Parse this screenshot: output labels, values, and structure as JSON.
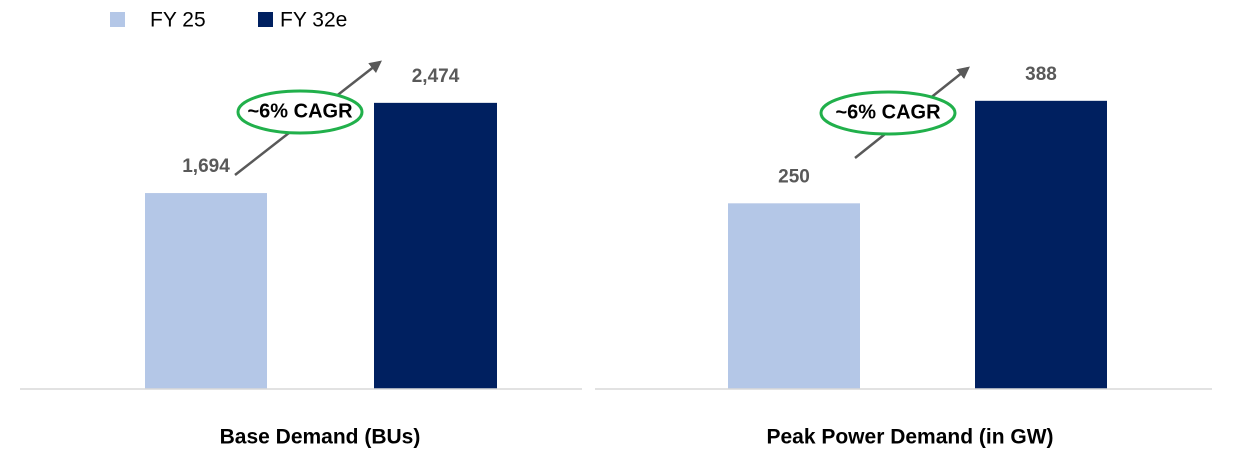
{
  "legend": [
    {
      "name": "FY 25",
      "color": "#b4c7e7"
    },
    {
      "name": "FY 32e",
      "color": "#002060"
    }
  ],
  "chart_data": [
    {
      "type": "bar",
      "xlabel": "Base Demand (BUs)",
      "values": [
        1694,
        2474
      ],
      "value_labels": [
        "1,694",
        "2,474"
      ],
      "ylim": [
        0,
        3320
      ],
      "annotation": "~6% CAGR"
    },
    {
      "type": "bar",
      "xlabel": "Peak Power Demand (in GW)",
      "values": [
        250,
        388
      ],
      "value_labels": [
        "250",
        "388"
      ],
      "ylim": [
        0,
        517
      ],
      "annotation": "~6% CAGR"
    }
  ]
}
